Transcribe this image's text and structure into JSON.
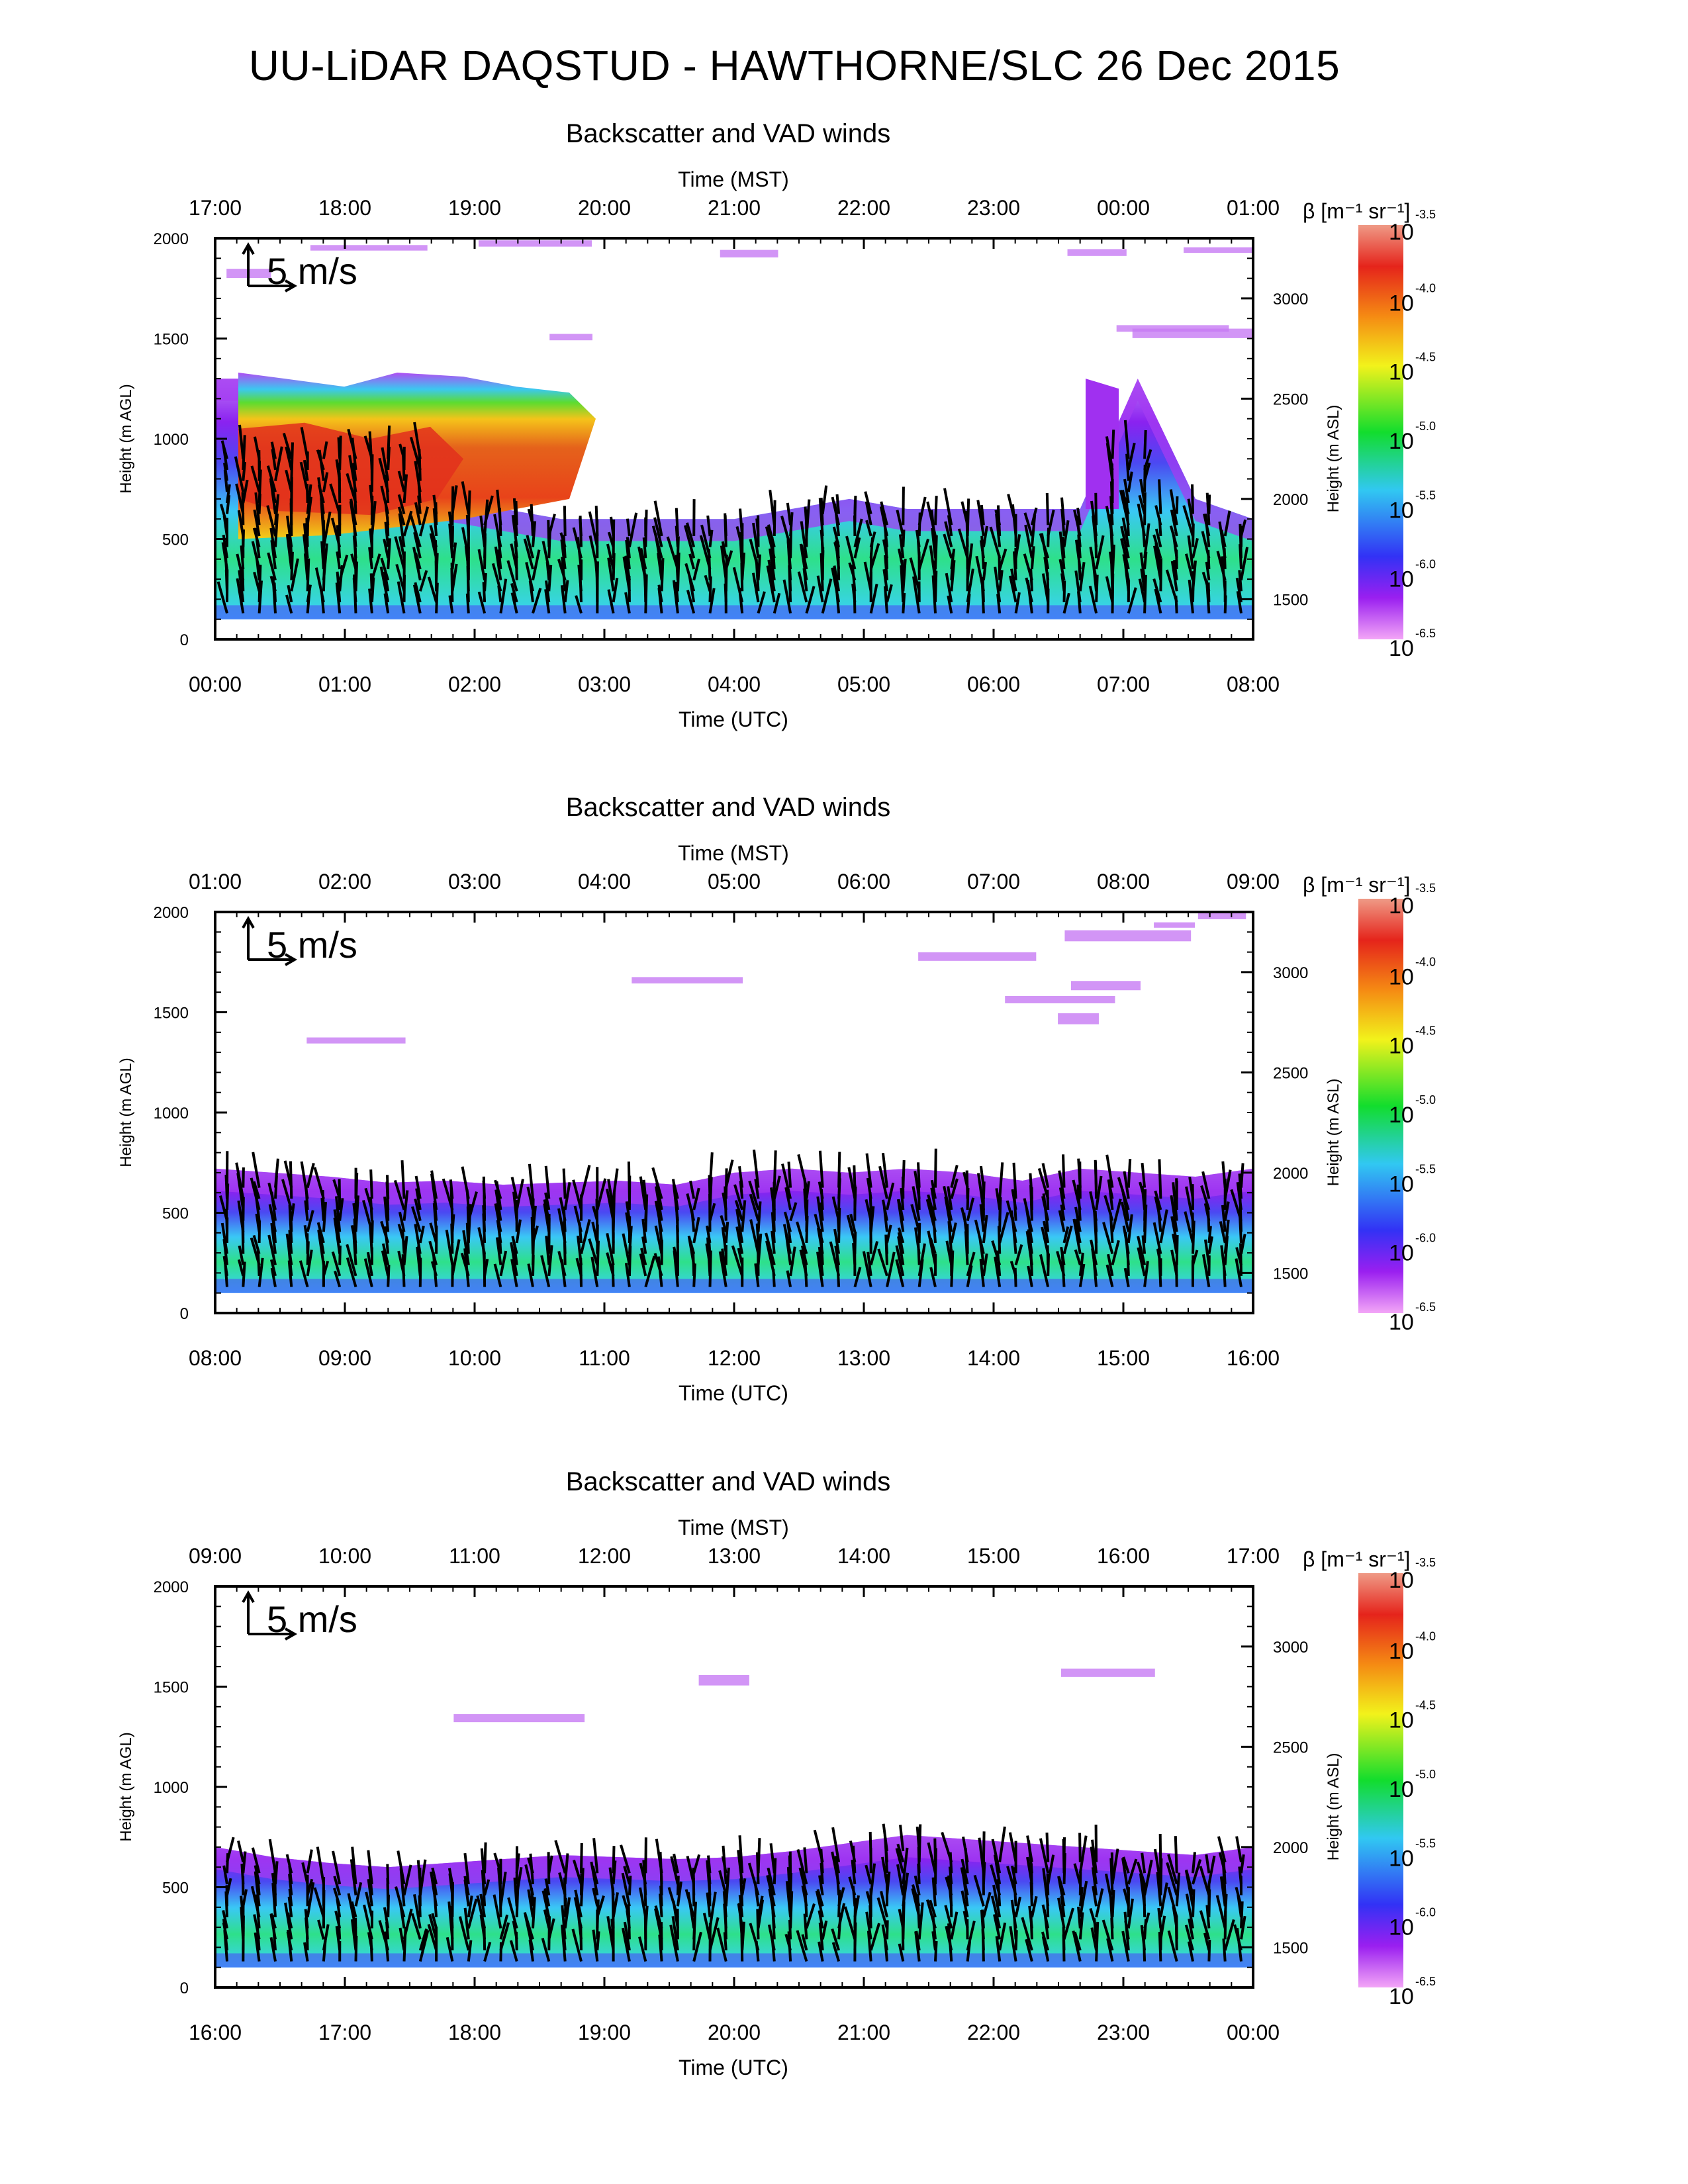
{
  "title": "UU-LiDAR DAQSTUD - HAWTHORNE/SLC 26 Dec 2015",
  "panel_title": "Backscatter and VAD winds",
  "top_axis_label": "Time (MST)",
  "bottom_axis_label": "Time (UTC)",
  "left_axis_label": "Height (m AGL)",
  "right_axis_label": "Height (m ASL)",
  "colorbar_label": "β [m⁻¹ sr⁻¹]",
  "wind_scale_label": "5 m/s",
  "chart_data": [
    {
      "type": "heatmap",
      "title": "Backscatter and VAD winds",
      "xlabel": "Time (UTC)",
      "x2label": "Time (MST)",
      "ylabel": "Height (m AGL)",
      "y2label": "Height (m ASL)",
      "bottom_ticks": [
        "00:00",
        "01:00",
        "02:00",
        "03:00",
        "04:00",
        "05:00",
        "06:00",
        "07:00",
        "08:00"
      ],
      "top_ticks": [
        "17:00",
        "18:00",
        "19:00",
        "20:00",
        "21:00",
        "22:00",
        "23:00",
        "00:00",
        "01:00"
      ],
      "left_ticks": [
        "0",
        "500",
        "1000",
        "1500",
        "2000"
      ],
      "ylim": [
        0,
        2000
      ],
      "right_ticks": [
        "1500",
        "2000",
        "2500",
        "3000"
      ],
      "mixed_layer_top_m": [
        1300,
        1300,
        1250,
        1200,
        700,
        650,
        600,
        600,
        600,
        600,
        650,
        700,
        650,
        650,
        650,
        650,
        1300,
        700,
        600
      ],
      "peak_log10_beta": -4.0
    },
    {
      "type": "heatmap",
      "title": "Backscatter and VAD winds",
      "xlabel": "Time (UTC)",
      "x2label": "Time (MST)",
      "ylabel": "Height (m AGL)",
      "y2label": "Height (m ASL)",
      "bottom_ticks": [
        "08:00",
        "09:00",
        "10:00",
        "11:00",
        "12:00",
        "13:00",
        "14:00",
        "15:00",
        "16:00"
      ],
      "top_ticks": [
        "01:00",
        "02:00",
        "03:00",
        "04:00",
        "05:00",
        "06:00",
        "07:00",
        "08:00",
        "09:00"
      ],
      "left_ticks": [
        "0",
        "500",
        "1000",
        "1500",
        "2000"
      ],
      "ylim": [
        0,
        2000
      ],
      "right_ticks": [
        "1500",
        "2000",
        "2500",
        "3000"
      ],
      "mixed_layer_top_m": [
        720,
        700,
        680,
        650,
        660,
        640,
        650,
        660,
        640,
        700,
        720,
        700,
        720,
        700,
        660,
        720,
        700,
        680,
        720
      ],
      "peak_log10_beta": -5.3
    },
    {
      "type": "heatmap",
      "title": "Backscatter and VAD winds",
      "xlabel": "Time (UTC)",
      "x2label": "Time (MST)",
      "ylabel": "Height (m AGL)",
      "y2label": "Height (m ASL)",
      "bottom_ticks": [
        "16:00",
        "17:00",
        "18:00",
        "19:00",
        "20:00",
        "21:00",
        "22:00",
        "23:00",
        "00:00"
      ],
      "top_ticks": [
        "09:00",
        "10:00",
        "11:00",
        "12:00",
        "13:00",
        "14:00",
        "15:00",
        "16:00",
        "17:00"
      ],
      "left_ticks": [
        "0",
        "500",
        "1000",
        "1500",
        "2000"
      ],
      "ylim": [
        0,
        2000
      ],
      "right_ticks": [
        "1500",
        "2000",
        "2500",
        "3000"
      ],
      "mixed_layer_top_m": [
        700,
        650,
        620,
        600,
        620,
        640,
        660,
        650,
        640,
        650,
        680,
        720,
        760,
        740,
        720,
        700,
        680,
        660,
        700
      ],
      "peak_log10_beta": -5.1
    }
  ],
  "colorbar": {
    "top_label": "10",
    "top_exponent": "-3.5",
    "ticks": [
      {
        "base": "10",
        "exp": "-4.0",
        "log10": -4.0
      },
      {
        "base": "10",
        "exp": "-4.5",
        "log10": -4.5
      },
      {
        "base": "10",
        "exp": "-5.0",
        "log10": -5.0
      },
      {
        "base": "10",
        "exp": "-5.5",
        "log10": -5.5
      },
      {
        "base": "10",
        "exp": "-6.0",
        "log10": -6.0
      },
      {
        "base": "10",
        "exp": "-6.5",
        "log10": -6.5
      }
    ],
    "range_log10": [
      -6.5,
      -3.5
    ],
    "colors": [
      "#f3a6f7",
      "#9a1ff0",
      "#3232f5",
      "#31c8f2",
      "#12dd2d",
      "#f2f21b",
      "#f58a13",
      "#e5241b",
      "#ef9a86"
    ]
  }
}
